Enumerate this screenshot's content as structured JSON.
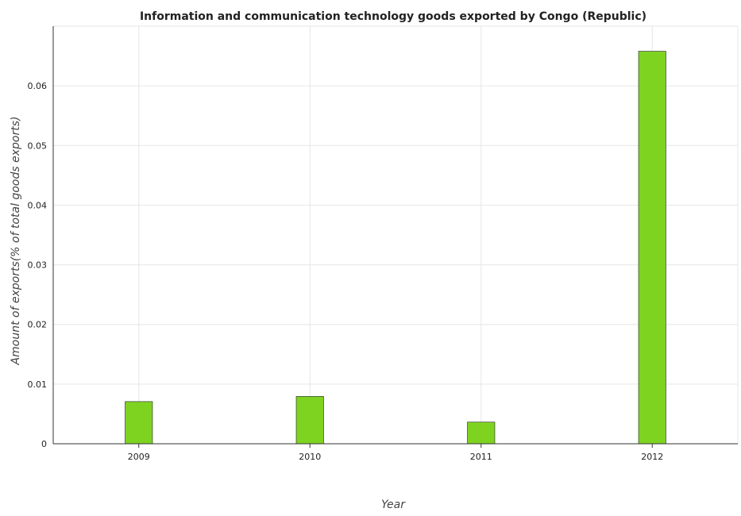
{
  "chart_data": {
    "type": "bar",
    "title": "Information and communication technology goods exported by Congo (Republic)",
    "xlabel": "Year",
    "ylabel": "Amount of exports(% of total goods exports)",
    "categories": [
      "2009",
      "2010",
      "2011",
      "2012"
    ],
    "values": [
      0.00707,
      0.00794,
      0.00363,
      0.0658
    ],
    "ylim": [
      0,
      0.07
    ],
    "yticks": [
      "0",
      "0.01",
      "0.02",
      "0.03",
      "0.04",
      "0.05",
      "0.06"
    ],
    "grid": true,
    "bar_color": "#7ed321"
  }
}
